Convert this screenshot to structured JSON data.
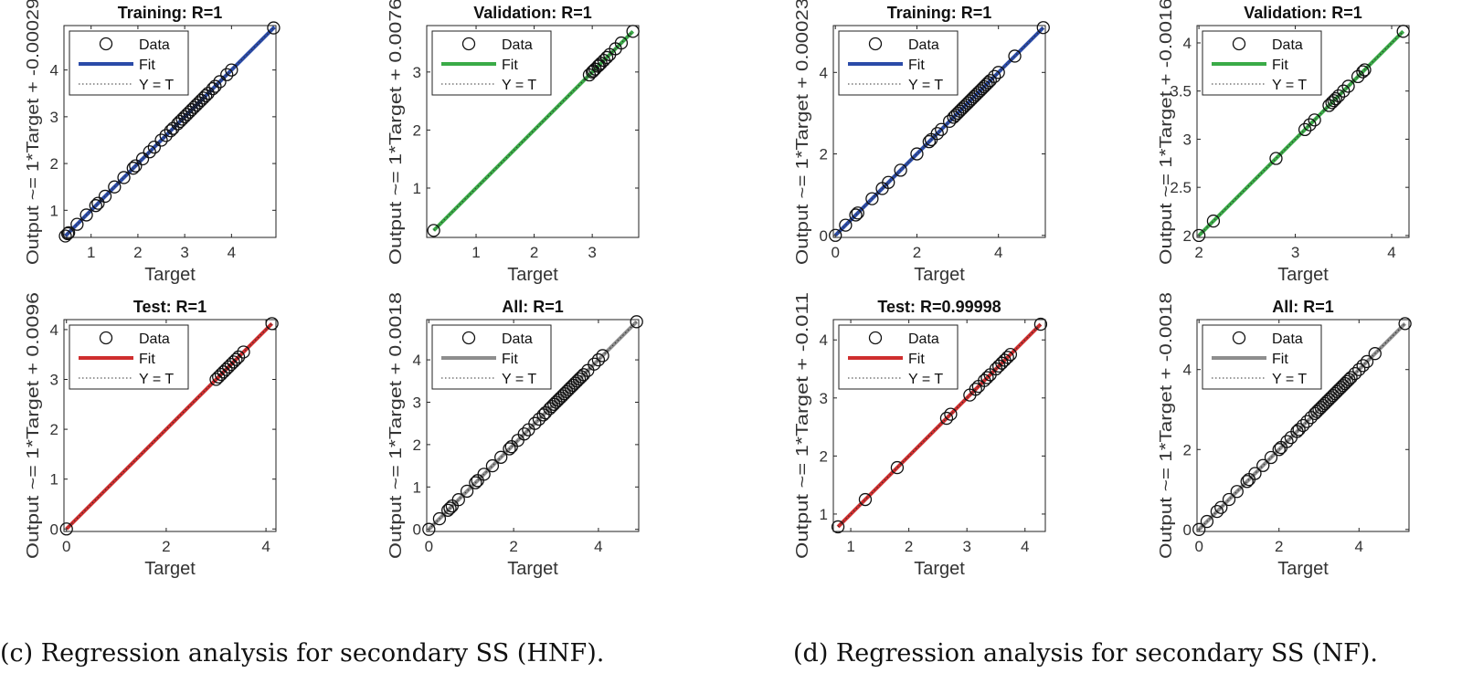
{
  "common": {
    "xlabel": "Target",
    "legend": {
      "data": "Data",
      "fit": "Fit",
      "yt": "Y = T"
    }
  },
  "captions": {
    "c": "(c) Regression analysis for secondary SS (HNF).",
    "d": "(d) Regression analysis for secondary SS (NF)."
  },
  "colors": {
    "training": "#2b4ba8",
    "validation": "#3aab47",
    "test": "#cf2e2e",
    "all": "#8e8e8e"
  },
  "chart_data": [
    {
      "id": "c-training",
      "type": "scatter",
      "title": "Training: R=1",
      "ylabel": "Output ~= 1*Target + -0.00029",
      "xlabel": "Target",
      "xlim": [
        0.42,
        4.95
      ],
      "ylim": [
        0.42,
        4.95
      ],
      "xticks": [
        1,
        2,
        3,
        4
      ],
      "yticks": [
        1,
        2,
        3,
        4
      ],
      "fit_color": "training",
      "fit": [
        0.45,
        4.92
      ],
      "points": [
        0.45,
        0.5,
        0.52,
        0.7,
        0.9,
        1.1,
        1.15,
        1.3,
        1.5,
        1.7,
        1.9,
        1.95,
        2.1,
        2.25,
        2.35,
        2.5,
        2.6,
        2.7,
        2.75,
        2.85,
        2.9,
        2.95,
        3.0,
        3.05,
        3.1,
        3.15,
        3.2,
        3.25,
        3.3,
        3.35,
        3.4,
        3.45,
        3.5,
        3.6,
        3.65,
        3.75,
        3.9,
        4.0,
        4.9
      ]
    },
    {
      "id": "c-validation",
      "type": "scatter",
      "title": "Validation: R=1",
      "ylabel": "Output ~= 1*Target + 0.0076",
      "xlabel": "Target",
      "xlim": [
        0.15,
        3.8
      ],
      "ylim": [
        0.15,
        3.8
      ],
      "xticks": [
        1,
        2,
        3
      ],
      "yticks": [
        1,
        2,
        3
      ],
      "fit_color": "validation",
      "fit": [
        0.27,
        3.7
      ],
      "points": [
        0.27,
        2.95,
        3.0,
        3.02,
        3.05,
        3.1,
        3.12,
        3.15,
        3.2,
        3.25,
        3.3,
        3.4,
        3.5,
        3.7
      ]
    },
    {
      "id": "c-test",
      "type": "scatter",
      "title": "Test: R=1",
      "ylabel": "Output ~= 1*Target + 0.0096",
      "xlabel": "Target",
      "xlim": [
        -0.05,
        4.2
      ],
      "ylim": [
        -0.05,
        4.2
      ],
      "xticks": [
        0,
        2,
        4
      ],
      "yticks": [
        0,
        1,
        2,
        3,
        4
      ],
      "fit_color": "test",
      "fit": [
        0.0,
        4.12
      ],
      "points": [
        0.0,
        3.0,
        3.05,
        3.1,
        3.15,
        3.2,
        3.25,
        3.3,
        3.35,
        3.4,
        3.45,
        3.55,
        4.12
      ]
    },
    {
      "id": "c-all",
      "type": "scatter",
      "title": "All: R=1",
      "ylabel": "Output ~= 1*Target + 0.0018",
      "xlabel": "Target",
      "xlim": [
        -0.05,
        4.95
      ],
      "ylim": [
        -0.05,
        4.95
      ],
      "xticks": [
        0,
        2,
        4
      ],
      "yticks": [
        0,
        1,
        2,
        3,
        4
      ],
      "fit_color": "all",
      "fit": [
        0.0,
        4.9
      ],
      "points": [
        0.0,
        0.25,
        0.45,
        0.5,
        0.55,
        0.7,
        0.9,
        1.1,
        1.15,
        1.3,
        1.5,
        1.7,
        1.9,
        1.95,
        2.1,
        2.25,
        2.35,
        2.5,
        2.6,
        2.7,
        2.75,
        2.85,
        2.9,
        2.95,
        3.0,
        3.05,
        3.1,
        3.15,
        3.2,
        3.25,
        3.3,
        3.35,
        3.4,
        3.45,
        3.5,
        3.55,
        3.6,
        3.65,
        3.75,
        3.9,
        4.0,
        4.1,
        4.9
      ]
    },
    {
      "id": "d-training",
      "type": "scatter",
      "title": "Training: R=1",
      "ylabel": "Output ~= 1*Target + 0.00023",
      "xlabel": "Target",
      "xlim": [
        -0.05,
        5.15
      ],
      "ylim": [
        -0.05,
        5.15
      ],
      "xticks": [
        0,
        2,
        4
      ],
      "yticks": [
        0,
        2,
        4
      ],
      "fit_color": "training",
      "fit": [
        0.0,
        5.1
      ],
      "points": [
        0.0,
        0.25,
        0.5,
        0.55,
        0.9,
        1.15,
        1.3,
        1.6,
        2.0,
        2.3,
        2.35,
        2.5,
        2.6,
        2.8,
        2.9,
        2.95,
        3.0,
        3.05,
        3.1,
        3.15,
        3.2,
        3.25,
        3.3,
        3.35,
        3.4,
        3.45,
        3.5,
        3.55,
        3.6,
        3.65,
        3.7,
        3.75,
        3.8,
        3.9,
        4.0,
        4.4,
        5.1
      ]
    },
    {
      "id": "d-validation",
      "type": "scatter",
      "title": "Validation: R=1",
      "ylabel": "Output ~= 1*Target + -0.0016",
      "xlabel": "Target",
      "xlim": [
        1.98,
        4.18
      ],
      "ylim": [
        1.98,
        4.18
      ],
      "xticks": [
        2,
        3,
        4
      ],
      "yticks": [
        2,
        2.5,
        3,
        3.5,
        4
      ],
      "fit_color": "validation",
      "fit": [
        2.0,
        4.12
      ],
      "points": [
        2.0,
        2.15,
        2.8,
        3.1,
        3.15,
        3.2,
        3.35,
        3.38,
        3.4,
        3.42,
        3.45,
        3.5,
        3.55,
        3.65,
        3.7,
        3.72,
        4.12
      ]
    },
    {
      "id": "d-test",
      "type": "scatter",
      "title": "Test: R=0.99998",
      "ylabel": "Output ~= 1*Target + -0.011",
      "xlabel": "Target",
      "xlim": [
        0.7,
        4.35
      ],
      "ylim": [
        0.7,
        4.35
      ],
      "xticks": [
        1,
        2,
        3,
        4
      ],
      "yticks": [
        1,
        2,
        3,
        4
      ],
      "fit_color": "test",
      "fit": [
        0.78,
        4.27
      ],
      "points": [
        0.78,
        1.25,
        1.8,
        2.65,
        2.72,
        3.05,
        3.15,
        3.2,
        3.3,
        3.35,
        3.4,
        3.5,
        3.55,
        3.6,
        3.65,
        3.7,
        3.75,
        4.27
      ]
    },
    {
      "id": "d-all",
      "type": "scatter",
      "title": "All: R=1",
      "ylabel": "Output ~= 1*Target + -0.0018",
      "xlabel": "Target",
      "xlim": [
        -0.05,
        5.25
      ],
      "ylim": [
        -0.05,
        5.25
      ],
      "xticks": [
        0,
        2,
        4
      ],
      "yticks": [
        0,
        2,
        4
      ],
      "fit_color": "all",
      "fit": [
        0.0,
        5.15
      ],
      "points": [
        0.0,
        0.2,
        0.45,
        0.55,
        0.75,
        0.95,
        1.2,
        1.25,
        1.4,
        1.6,
        1.8,
        2.0,
        2.05,
        2.2,
        2.3,
        2.45,
        2.5,
        2.6,
        2.7,
        2.8,
        2.9,
        2.95,
        3.0,
        3.05,
        3.1,
        3.15,
        3.2,
        3.25,
        3.3,
        3.35,
        3.4,
        3.45,
        3.5,
        3.55,
        3.6,
        3.65,
        3.7,
        3.75,
        3.8,
        3.9,
        4.0,
        4.1,
        4.2,
        4.4,
        5.15
      ]
    }
  ]
}
